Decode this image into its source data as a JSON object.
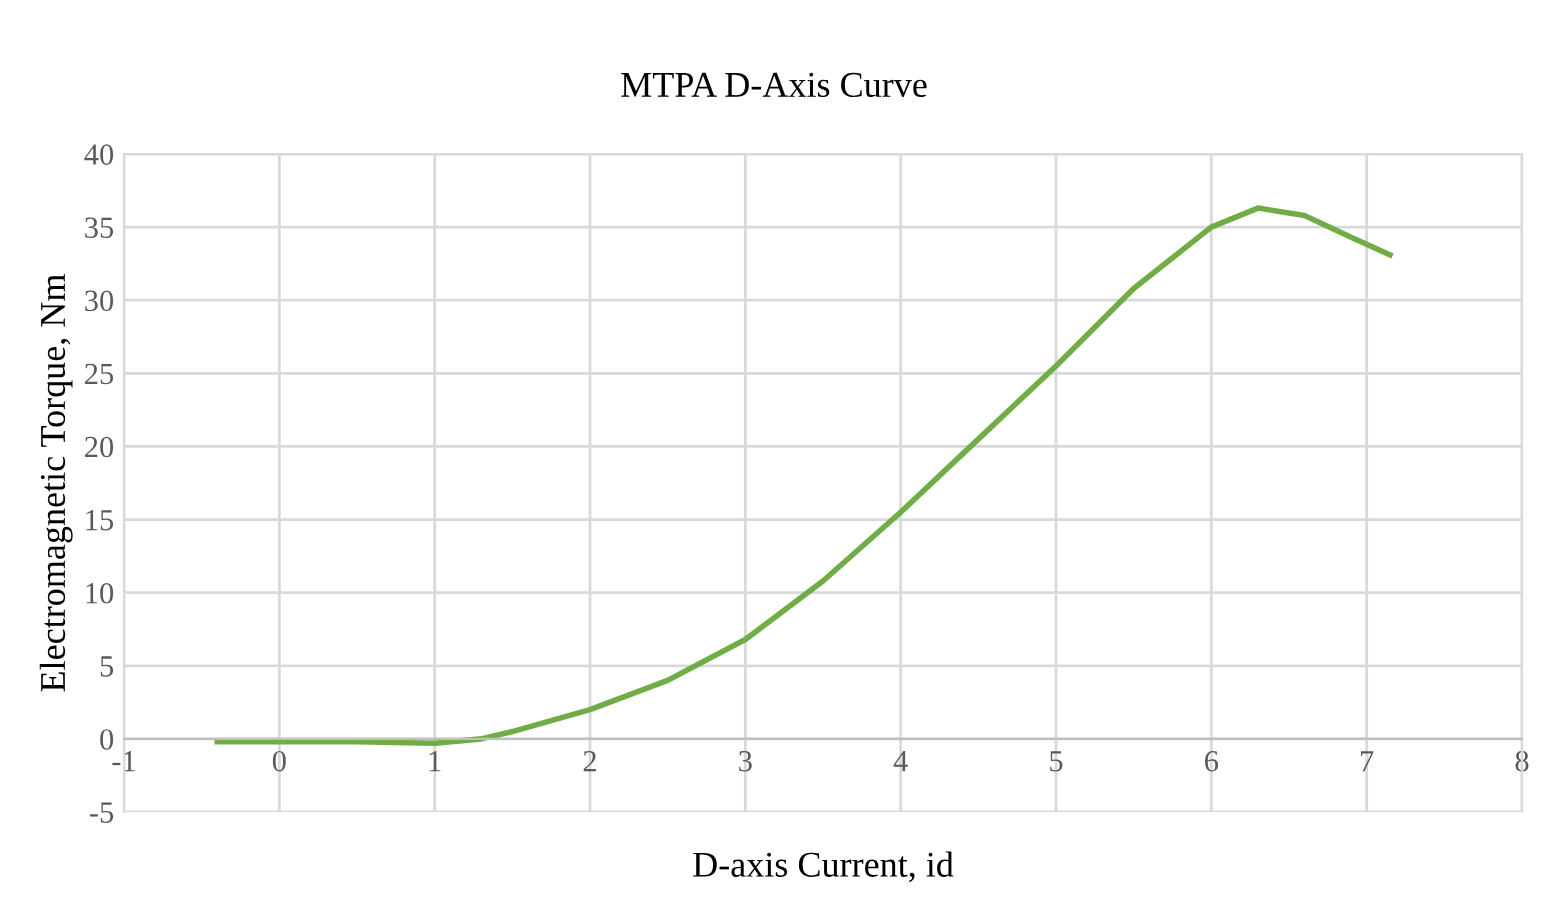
{
  "chart_data": {
    "type": "line",
    "title": "MTPA D-Axis Curve",
    "xlabel": "D-axis Current, id",
    "ylabel": "Electromagnetic Torque, Nm",
    "series": [
      {
        "color": "#70ad47",
        "x": [
          -0.4,
          0,
          0.5,
          1,
          1.3,
          1.5,
          2,
          2.5,
          3,
          3.5,
          4,
          4.5,
          5,
          5.5,
          6,
          6.3,
          6.6,
          6.9,
          7.15
        ],
        "values": [
          -0.2,
          -0.2,
          -0.2,
          -0.3,
          0,
          0.5,
          2,
          4,
          6.8,
          10.8,
          15.5,
          20.5,
          25.5,
          30.8,
          35,
          36.3,
          35.8,
          34.3,
          33.1
        ]
      }
    ],
    "xlim": [
      -1,
      8
    ],
    "xticks": [
      -1,
      0,
      1,
      2,
      3,
      4,
      5,
      6,
      7,
      8
    ],
    "ylim": [
      -5,
      40
    ],
    "yticks": [
      -5,
      0,
      5,
      10,
      15,
      20,
      25,
      30,
      35,
      40
    ],
    "grid": true,
    "marker": "none",
    "line_style": "solid"
  }
}
